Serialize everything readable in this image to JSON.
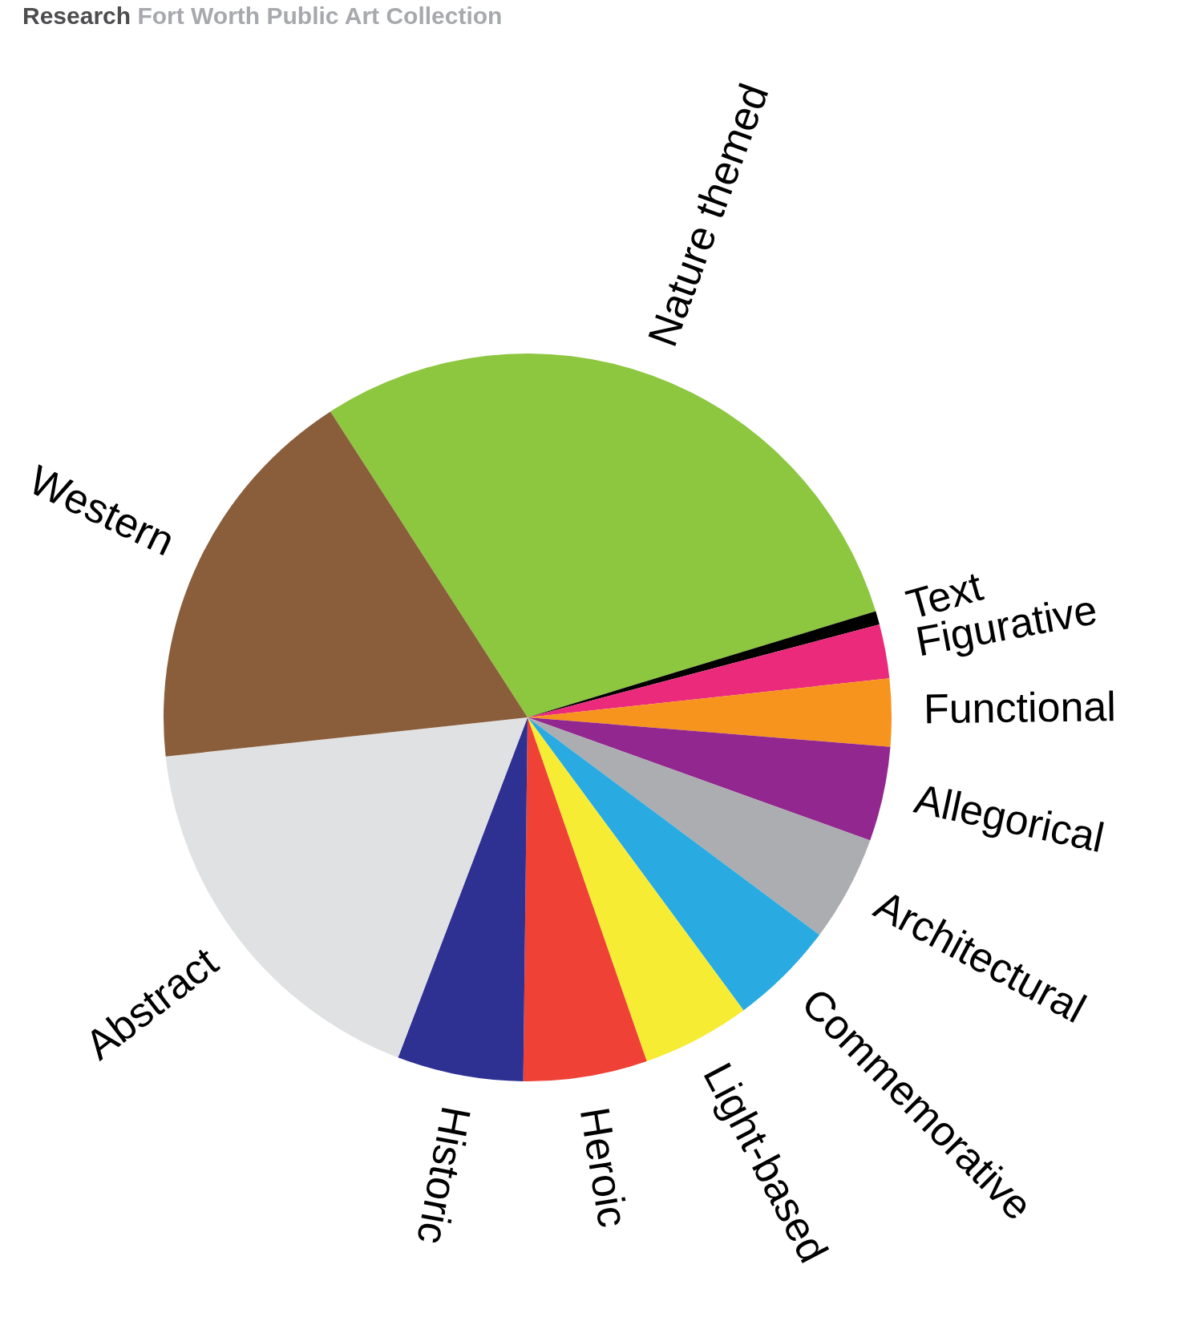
{
  "chart_data": {
    "type": "pie",
    "title": "Research",
    "subtitle": "Fort Worth Public Art Collection",
    "categories": [
      "Nature themed",
      "Text",
      "Figurative",
      "Functional",
      "Allegorical",
      "Architectural",
      "Commemorative",
      "Light-based",
      "Heroic",
      "Historic",
      "Abstract",
      "Western"
    ],
    "values": [
      29.4,
      0.6,
      2.4,
      3.0,
      4.2,
      4.7,
      4.7,
      4.8,
      5.5,
      5.6,
      17.5,
      17.6
    ],
    "colors": [
      "#8dc63f",
      "#000000",
      "#ec2a7b",
      "#f7941d",
      "#92278f",
      "#acadb0",
      "#29abe2",
      "#f7ec34",
      "#ef4136",
      "#2e3192",
      "#e0e1e2",
      "#8a5d3b"
    ]
  }
}
